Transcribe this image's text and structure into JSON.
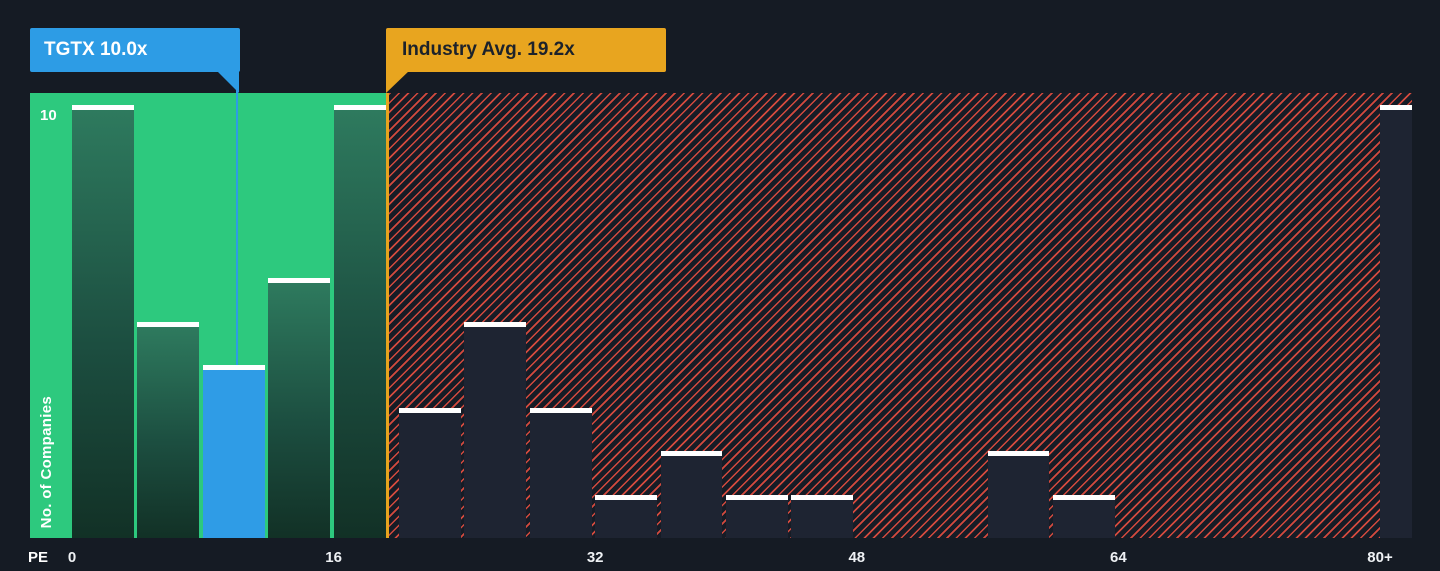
{
  "chart_data": {
    "type": "bar",
    "xlabel": "PE",
    "ylabel": "No. of Companies",
    "y_top_label": "10",
    "ylim": [
      0,
      10
    ],
    "grid": false,
    "legend": false,
    "tgtx": {
      "label": "TGTX 10.0x",
      "value": 10.0
    },
    "industry": {
      "label": "Industry Avg. 19.2x",
      "value": 19.2
    },
    "x_axis_ticks": [
      {
        "label": "0",
        "value": 0
      },
      {
        "label": "16",
        "value": 16
      },
      {
        "label": "32",
        "value": 32
      },
      {
        "label": "48",
        "value": 48
      },
      {
        "label": "64",
        "value": 64
      },
      {
        "label": "80+",
        "value": 80
      }
    ],
    "bins": [
      {
        "range": "0-4",
        "start": 0,
        "end": 4,
        "count": 10,
        "style": "green"
      },
      {
        "range": "4-8",
        "start": 4,
        "end": 8,
        "count": 5,
        "style": "green"
      },
      {
        "range": "8-12",
        "start": 8,
        "end": 12,
        "count": 4,
        "style": "blue",
        "company": "TGTX"
      },
      {
        "range": "12-16",
        "start": 12,
        "end": 16,
        "count": 6,
        "style": "green"
      },
      {
        "range": "16-20",
        "start": 16,
        "end": 20,
        "count": 10,
        "style": "green"
      },
      {
        "range": "20-24",
        "start": 20,
        "end": 24,
        "count": 3,
        "style": "dark"
      },
      {
        "range": "24-28",
        "start": 24,
        "end": 28,
        "count": 5,
        "style": "dark"
      },
      {
        "range": "28-32",
        "start": 28,
        "end": 32,
        "count": 3,
        "style": "dark"
      },
      {
        "range": "32-36",
        "start": 32,
        "end": 36,
        "count": 1,
        "style": "dark"
      },
      {
        "range": "36-40",
        "start": 36,
        "end": 40,
        "count": 2,
        "style": "dark"
      },
      {
        "range": "40-44",
        "start": 40,
        "end": 44,
        "count": 1,
        "style": "dark"
      },
      {
        "range": "44-48",
        "start": 44,
        "end": 48,
        "count": 1,
        "style": "dark"
      },
      {
        "range": "48-52",
        "start": 48,
        "end": 52,
        "count": 0,
        "style": "dark"
      },
      {
        "range": "52-56",
        "start": 52,
        "end": 56,
        "count": 0,
        "style": "dark"
      },
      {
        "range": "56-60",
        "start": 56,
        "end": 60,
        "count": 2,
        "style": "dark"
      },
      {
        "range": "60-64",
        "start": 60,
        "end": 64,
        "count": 1,
        "style": "dark"
      },
      {
        "range": "64-68",
        "start": 64,
        "end": 68,
        "count": 0,
        "style": "dark"
      },
      {
        "range": "68-72",
        "start": 68,
        "end": 72,
        "count": 0,
        "style": "dark"
      },
      {
        "range": "72-76",
        "start": 72,
        "end": 76,
        "count": 0,
        "style": "dark"
      },
      {
        "range": "76-80",
        "start": 76,
        "end": 80,
        "count": 0,
        "style": "dark"
      },
      {
        "range": "80+",
        "start": 80,
        "end": 84,
        "count": 10,
        "style": "dark"
      }
    ]
  },
  "colors": {
    "background": "#151b24",
    "below_zone_green": "#2dc97e",
    "bar_green_dark": "#1c4e40",
    "tgtx_blue": "#2d9ce5",
    "industry_yellow": "#e8a51f",
    "above_zone_hatch_red": "#d34a3e",
    "bar_cap_white": "#ffffff",
    "axis_text": "#eef1f4"
  }
}
